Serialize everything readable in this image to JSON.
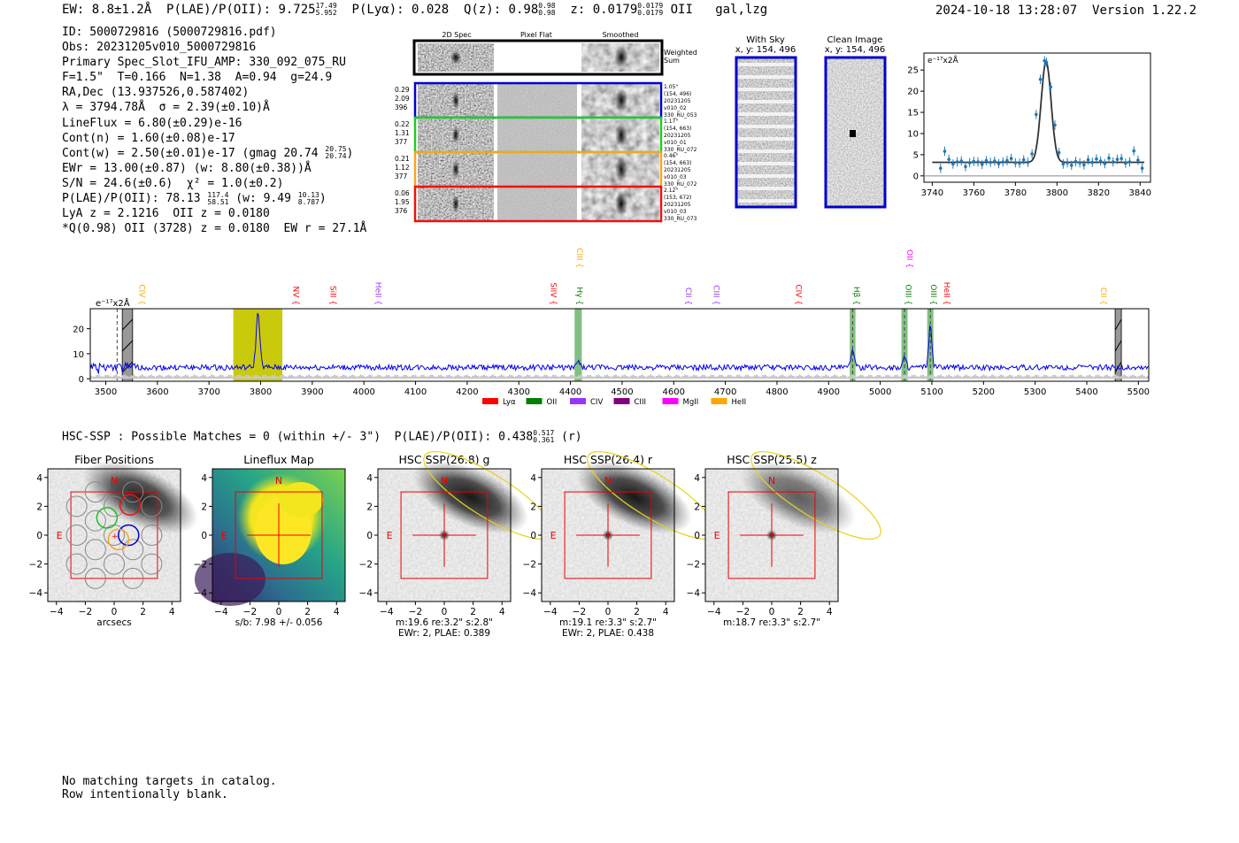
{
  "header": {
    "ew": "EW: 8.8±1.2Å",
    "plae_label": "P(LAE)/P(OII): 9.725",
    "plae_sup": "17.49",
    "plae_sub": "5.952",
    "plya": "P(Lyα): 0.028",
    "qz_label": "Q(z): 0.98",
    "qz_sup": "0.98",
    "qz_sub": "0.98",
    "z_label": "z: 0.0179",
    "z_sup": "0.0179",
    "z_sub": "0.0179",
    "z_line": "OII",
    "flags": "gal,lzg",
    "timestamp": "2024-10-18 13:28:07",
    "version": "Version 1.22.2"
  },
  "info": {
    "id": "ID: 5000729816 (5000729816.pdf)",
    "obs": "Obs: 20231205v010_5000729816",
    "primary": "Primary Spec_Slot_IFU_AMP: 330_092_075_RU",
    "fit": "F=1.5\"  T=0.166  N=1.38  A=0.94  g=24.9",
    "radec": "RA,Dec (13.937526,0.587402)",
    "lambda": "λ = 3794.78Å  σ = 2.39(±0.10)Å",
    "lineflux": "LineFlux = 6.80(±0.29)e-16",
    "cont_n": "Cont(n) = 1.60(±0.08)e-17",
    "cont_w_main": "Cont(w) = 2.50(±0.01)e-17 (gmag 20.74",
    "cont_w_sup": "20.75",
    "cont_w_sub": "20.74",
    "cont_w_end": ")",
    "ewr": "EWr = 13.00(±0.87) (w: 8.80(±0.38))Å",
    "sn": "S/N = 24.6(±0.6)  χ² = 1.0(±0.2)",
    "plae_main": "P(LAE)/P(OII): 78.13",
    "plae_sup": "117.4",
    "plae_sub": "58.51",
    "plae_w": "(w: 9.49",
    "plae_w_sup": "10.13",
    "plae_w_sub": "8.787",
    "plae_end": ")",
    "lya": "LyA z = 2.1216  OII z = 0.0180",
    "q": "*Q(0.98) OII (3728) z = 0.0180  EW r = 27.1Å"
  },
  "cutouts": {
    "col_titles": [
      "2D Spec",
      "Pixel Flat",
      "Smoothed"
    ],
    "weighted_label": "Weighted Sum",
    "rows": [
      {
        "color": "#0000cc",
        "left": [
          "0.29",
          "2.09",
          "396"
        ],
        "right": [
          "1.05\"",
          "(154, 496)",
          "20231205",
          "v010_02",
          "330_RU_053"
        ]
      },
      {
        "color": "#22cc22",
        "left": [
          "0.22",
          "1.31",
          "377"
        ],
        "right": [
          "1.17\"",
          "(154, 663)",
          "20231205",
          "v010_01",
          "330_RU_072"
        ]
      },
      {
        "color": "#f5a623",
        "left": [
          "0.21",
          "1.12",
          "377"
        ],
        "right": [
          "0.46\"",
          "(154, 663)",
          "20231205",
          "v010_03",
          "330_RU_072"
        ]
      },
      {
        "color": "#ee1111",
        "left": [
          "0.06",
          "1.95",
          "376"
        ],
        "right": [
          "2.12\"",
          "(153, 672)",
          "20231205",
          "v010_03",
          "330_RU_073"
        ]
      }
    ]
  },
  "sky": {
    "with_sky_title": "With Sky",
    "with_sky_coords": "x, y: 154, 496",
    "clean_title": "Clean Image",
    "clean_coords": "x, y: 154, 496"
  },
  "colors": {
    "blue": "#0000ee",
    "lya": "#ff0000",
    "oii": "#008000",
    "civ": "#9933ff",
    "ciii": "#800080",
    "mgii": "#ff00ff",
    "heii": "#ffa500",
    "olive": "#c7c700",
    "band_green": "#5aaa5a"
  },
  "chart_data": [
    {
      "type": "line",
      "name": "fit-zoom",
      "unit_label": "e⁻¹⁷x2Å",
      "x_ticks": [
        3740,
        3760,
        3780,
        3800,
        3820,
        3840
      ],
      "y_ticks": [
        0,
        5,
        10,
        15,
        20,
        25
      ],
      "xlim": [
        3736,
        3845
      ],
      "ylim": [
        -1.5,
        29
      ],
      "points": [
        {
          "x": 3744,
          "y": 1.8
        },
        {
          "x": 3746,
          "y": 5.8
        },
        {
          "x": 3748,
          "y": 3.9
        },
        {
          "x": 3750,
          "y": 2.8
        },
        {
          "x": 3752,
          "y": 3.3
        },
        {
          "x": 3754,
          "y": 3.5
        },
        {
          "x": 3756,
          "y": 2.2
        },
        {
          "x": 3758,
          "y": 3.1
        },
        {
          "x": 3760,
          "y": 3.4
        },
        {
          "x": 3762,
          "y": 3.3
        },
        {
          "x": 3764,
          "y": 2.7
        },
        {
          "x": 3766,
          "y": 3.6
        },
        {
          "x": 3768,
          "y": 3.2
        },
        {
          "x": 3770,
          "y": 3.5
        },
        {
          "x": 3772,
          "y": 2.9
        },
        {
          "x": 3774,
          "y": 3.3
        },
        {
          "x": 3776,
          "y": 3.6
        },
        {
          "x": 3778,
          "y": 4.1
        },
        {
          "x": 3780,
          "y": 3.1
        },
        {
          "x": 3782,
          "y": 3.0
        },
        {
          "x": 3784,
          "y": 3.8
        },
        {
          "x": 3786,
          "y": 3.2
        },
        {
          "x": 3788,
          "y": 5.2
        },
        {
          "x": 3790,
          "y": 14.5
        },
        {
          "x": 3792,
          "y": 22.8
        },
        {
          "x": 3794,
          "y": 27.2
        },
        {
          "x": 3795,
          "y": 26.8
        },
        {
          "x": 3797,
          "y": 21.0
        },
        {
          "x": 3799,
          "y": 12.0
        },
        {
          "x": 3801,
          "y": 5.5
        },
        {
          "x": 3803,
          "y": 2.8
        },
        {
          "x": 3805,
          "y": 3.1
        },
        {
          "x": 3807,
          "y": 2.5
        },
        {
          "x": 3809,
          "y": 3.4
        },
        {
          "x": 3811,
          "y": 3.1
        },
        {
          "x": 3813,
          "y": 2.6
        },
        {
          "x": 3815,
          "y": 3.8
        },
        {
          "x": 3817,
          "y": 3.2
        },
        {
          "x": 3819,
          "y": 4.0
        },
        {
          "x": 3821,
          "y": 3.5
        },
        {
          "x": 3823,
          "y": 2.9
        },
        {
          "x": 3825,
          "y": 4.2
        },
        {
          "x": 3827,
          "y": 3.3
        },
        {
          "x": 3829,
          "y": 3.9
        },
        {
          "x": 3831,
          "y": 4.1
        },
        {
          "x": 3833,
          "y": 3.0
        },
        {
          "x": 3835,
          "y": 3.3
        },
        {
          "x": 3837,
          "y": 5.9
        },
        {
          "x": 3839,
          "y": 3.7
        },
        {
          "x": 3841,
          "y": 1.8
        }
      ],
      "model": {
        "continuum": 3.2,
        "amplitude": 23.8,
        "center": 3794.78,
        "sigma": 2.39
      }
    },
    {
      "type": "line",
      "name": "full-spectrum",
      "unit_label": "e⁻¹⁷x2Å",
      "x_ticks": [
        3500,
        3600,
        3700,
        3800,
        3900,
        4000,
        4100,
        4200,
        4300,
        4400,
        4500,
        4600,
        4700,
        4800,
        4900,
        5000,
        5100,
        5200,
        5300,
        5400,
        5500
      ],
      "y_ticks": [
        0,
        10,
        20
      ],
      "xlim": [
        3470,
        5520
      ],
      "ylim": [
        -1,
        28
      ],
      "continuum": 4.5,
      "emission_lines": [
        {
          "center": 3794.8,
          "amp": 22.0,
          "sigma": 3.5
        },
        {
          "center": 4415.0,
          "amp": 2.5,
          "sigma": 3.0
        },
        {
          "center": 4946.5,
          "amp": 8.0,
          "sigma": 3.0
        },
        {
          "center": 5047.0,
          "amp": 4.0,
          "sigma": 3.0
        },
        {
          "center": 5097.0,
          "amp": 16.5,
          "sigma": 3.0
        }
      ],
      "highlight_bands": [
        {
          "from": 3747,
          "to": 3842,
          "color": "olive"
        },
        {
          "from": 4408,
          "to": 4422,
          "color": "green"
        },
        {
          "from": 4941,
          "to": 4952,
          "color": "green"
        },
        {
          "from": 5041,
          "to": 5053,
          "color": "green"
        },
        {
          "from": 5091,
          "to": 5103,
          "color": "green"
        }
      ],
      "masked_bands": [
        {
          "from": 3532,
          "to": 3552
        },
        {
          "from": 5455,
          "to": 5467
        }
      ],
      "dashed_lines": [
        3522,
        4946.5,
        5047,
        5097
      ],
      "line_labels": [
        {
          "text": "CIV",
          "x": 3560,
          "level": 1,
          "color": "heii"
        },
        {
          "text": "NV",
          "x": 3858,
          "level": 1,
          "color": "lya"
        },
        {
          "text": "SiII",
          "x": 3930,
          "level": 1,
          "color": "lya"
        },
        {
          "text": "HeII",
          "x": 4018,
          "level": 1,
          "color": "civ"
        },
        {
          "text": "SiIV",
          "x": 4357,
          "level": 1,
          "color": "lya"
        },
        {
          "text": "CIII",
          "x": 4408,
          "level": 0,
          "color": "heii"
        },
        {
          "text": "Hγ",
          "x": 4408,
          "level": 1,
          "color": "oii"
        },
        {
          "text": "CII",
          "x": 4618,
          "level": 1,
          "color": "civ"
        },
        {
          "text": "CIII",
          "x": 4672,
          "level": 1,
          "color": "civ"
        },
        {
          "text": "CIV",
          "x": 4832,
          "level": 1,
          "color": "lya"
        },
        {
          "text": "Hβ",
          "x": 4944,
          "level": 1,
          "color": "oii"
        },
        {
          "text": "OII",
          "x": 5047,
          "level": 0,
          "color": "mgii"
        },
        {
          "text": "OIII",
          "x": 5044,
          "level": 1,
          "color": "oii"
        },
        {
          "text": "OIII",
          "x": 5093,
          "level": 1,
          "color": "oii"
        },
        {
          "text": "HeII",
          "x": 5119,
          "level": 1,
          "color": "lya"
        },
        {
          "text": "CII",
          "x": 5422,
          "level": 1,
          "color": "heii"
        }
      ],
      "legend": [
        {
          "label": "Lyα",
          "color": "lya"
        },
        {
          "label": "OII",
          "color": "oii"
        },
        {
          "label": "CIV",
          "color": "civ"
        },
        {
          "label": "CIII",
          "color": "ciii"
        },
        {
          "label": "MgII",
          "color": "mgii"
        },
        {
          "label": "HeII",
          "color": "heii"
        }
      ]
    }
  ],
  "hsc": {
    "line_main": "HSC-SSP : Possible Matches = 0 (within +/- 3\")  P(LAE)/P(OII): 0.438",
    "line_sup": "0.517",
    "line_sub": "0.361",
    "line_end": "(r)",
    "ticks": [
      "−4",
      "−2",
      "0",
      "2",
      "4"
    ],
    "panels": [
      {
        "title": "Fiber Positions",
        "cap1": "arcsecs",
        "cap2": "",
        "kind": "fiber"
      },
      {
        "title": "Lineflux Map",
        "cap1": "s/b: 7.98 +/- 0.056",
        "cap2": "",
        "kind": "flux"
      },
      {
        "title": "HSC SSP(26.8) g",
        "cap1": "m:19.6  re:3.2\"  s:2.8\"",
        "cap2": "EWr: 2, PLAE: 0.389",
        "kind": "img"
      },
      {
        "title": "HSC SSP(26.4) r",
        "cap1": "m:19.1  re:3.3\"  s:2.7\"",
        "cap2": "EWr: 2, PLAE: 0.438",
        "kind": "img"
      },
      {
        "title": "HSC SSP(25.5) z",
        "cap1": "m:18.7  re:3.3\"  s:2.7\"",
        "cap2": "",
        "kind": "img"
      }
    ],
    "compass_n": "N",
    "compass_e": "E"
  },
  "footer": {
    "line1": "No matching targets in catalog.",
    "line2": "Row intentionally blank."
  }
}
